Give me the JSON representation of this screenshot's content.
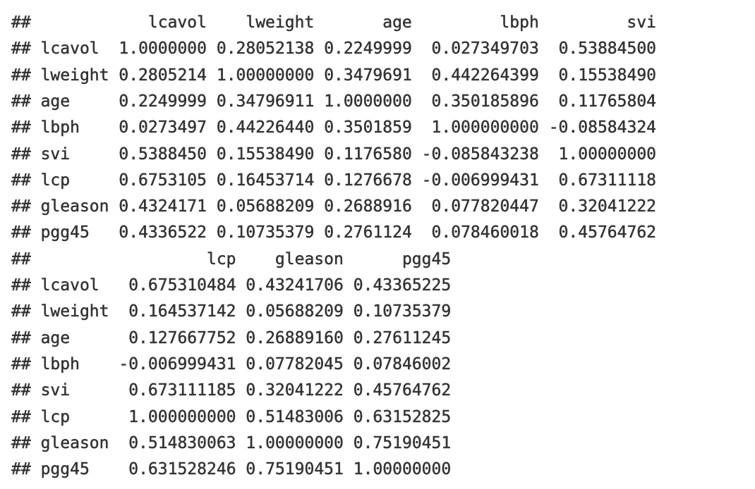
{
  "prefix": "##",
  "block1": {
    "columns": [
      "lcavol",
      "lweight",
      "age",
      "lbph",
      "svi"
    ],
    "rows": [
      {
        "name": "lcavol",
        "values": [
          "1.0000000",
          "0.28052138",
          "0.2249999",
          "0.027349703",
          "0.53884500"
        ]
      },
      {
        "name": "lweight",
        "values": [
          "0.2805214",
          "1.00000000",
          "0.3479691",
          "0.442264399",
          "0.15538490"
        ]
      },
      {
        "name": "age",
        "values": [
          "0.2249999",
          "0.34796911",
          "1.0000000",
          "0.350185896",
          "0.11765804"
        ]
      },
      {
        "name": "lbph",
        "values": [
          "0.0273497",
          "0.44226440",
          "0.3501859",
          "1.000000000",
          "-0.08584324"
        ]
      },
      {
        "name": "svi",
        "values": [
          "0.5388450",
          "0.15538490",
          "0.1176580",
          "-0.085843238",
          "1.00000000"
        ]
      },
      {
        "name": "lcp",
        "values": [
          "0.6753105",
          "0.16453714",
          "0.1276678",
          "-0.006999431",
          "0.67311118"
        ]
      },
      {
        "name": "gleason",
        "values": [
          "0.4324171",
          "0.05688209",
          "0.2688916",
          "0.077820447",
          "0.32041222"
        ]
      },
      {
        "name": "pgg45",
        "values": [
          "0.4336522",
          "0.10735379",
          "0.2761124",
          "0.078460018",
          "0.45764762"
        ]
      }
    ]
  },
  "block2": {
    "columns": [
      "lcp",
      "gleason",
      "pgg45"
    ],
    "rows": [
      {
        "name": "lcavol",
        "values": [
          "0.675310484",
          "0.43241706",
          "0.43365225"
        ]
      },
      {
        "name": "lweight",
        "values": [
          "0.164537142",
          "0.05688209",
          "0.10735379"
        ]
      },
      {
        "name": "age",
        "values": [
          "0.127667752",
          "0.26889160",
          "0.27611245"
        ]
      },
      {
        "name": "lbph",
        "values": [
          "-0.006999431",
          "0.07782045",
          "0.07846002"
        ]
      },
      {
        "name": "svi",
        "values": [
          "0.673111185",
          "0.32041222",
          "0.45764762"
        ]
      },
      {
        "name": "lcp",
        "values": [
          "1.000000000",
          "0.51483006",
          "0.63152825"
        ]
      },
      {
        "name": "gleason",
        "values": [
          "0.514830063",
          "1.00000000",
          "0.75190451"
        ]
      },
      {
        "name": "pgg45",
        "values": [
          "0.631528246",
          "0.75190451",
          "1.00000000"
        ]
      }
    ]
  }
}
